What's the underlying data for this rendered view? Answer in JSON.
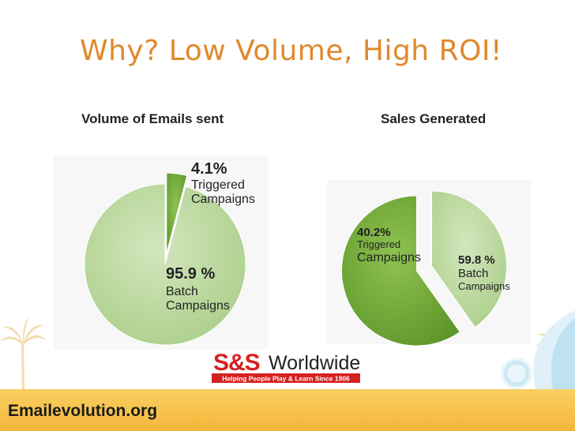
{
  "slide": {
    "title": "Why? Low Volume, High ROI!",
    "footer": "Emailevolution.org"
  },
  "logo": {
    "text": "S&S Worldwide",
    "mark": "S&S",
    "word": "Worldwide",
    "tagline": "Helping People Play & Learn Since 1906",
    "colors": {
      "mark": "#d62020",
      "word": "#222222",
      "tagline_bg": "#d62020"
    }
  },
  "colors": {
    "title": "#e0892c",
    "light_green": "#b7d69a",
    "dark_green": "#76ad3d",
    "footer": "#f4b63a"
  },
  "chart_data": [
    {
      "type": "pie",
      "title": "Volume of Emails sent",
      "slices": [
        {
          "pct": "4.1%",
          "value": 4.1,
          "line1": "Triggered",
          "line2": "Campaigns",
          "color": "#76ad3d",
          "exploded": true
        },
        {
          "pct": "95.9 %",
          "value": 95.9,
          "line1": "Batch",
          "line2": "Campaigns",
          "color": "#b7d69a",
          "exploded": false
        }
      ]
    },
    {
      "type": "pie",
      "title": "Sales Generated",
      "slices": [
        {
          "pct": "40.2%",
          "value": 40.2,
          "line1": "Triggered",
          "line2": "Campaigns",
          "color": "#b7d69a",
          "exploded": true
        },
        {
          "pct": "59.8 %",
          "value": 59.8,
          "line1": "Batch",
          "line2": "Campaigns",
          "color": "#76ad3d",
          "exploded": true
        }
      ]
    }
  ]
}
